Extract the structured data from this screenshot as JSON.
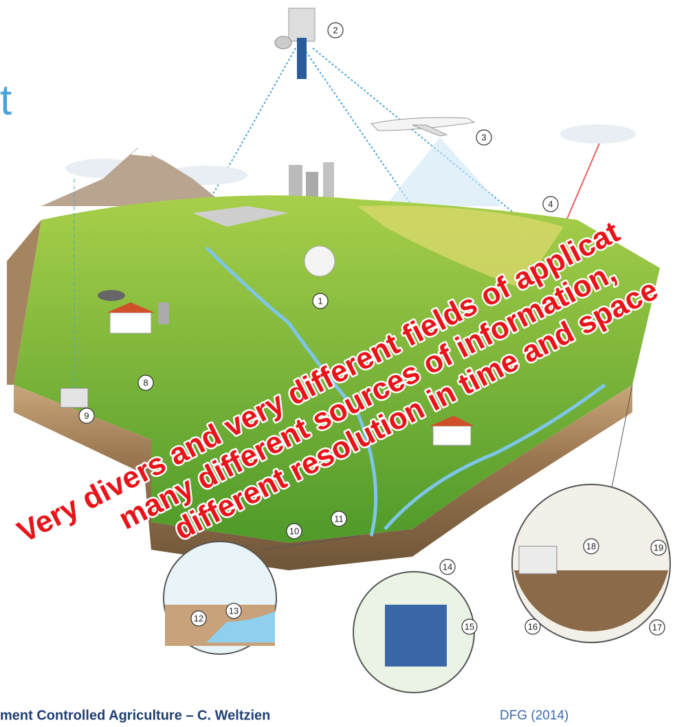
{
  "slide": {
    "title_fragment": "t",
    "overlay_lines": [
      "Very divers and very different fields of applicat",
      "many different sources of information,",
      "different resolution in time and space"
    ],
    "markers": [
      "1",
      "2",
      "3",
      "4",
      "8",
      "9",
      "10",
      "11",
      "12",
      "13",
      "14",
      "15",
      "16",
      "17",
      "18",
      "19"
    ],
    "footer": {
      "title": "ment Controlled Agriculture – C. Weltzien",
      "source": "DFG (2014)"
    }
  }
}
